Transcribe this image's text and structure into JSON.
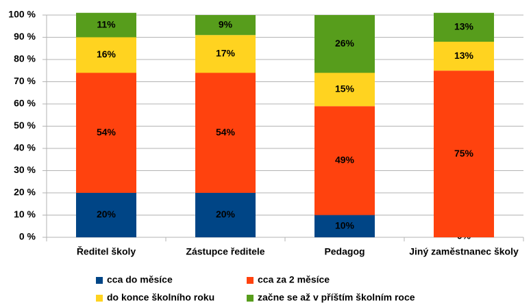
{
  "chart_data": {
    "type": "stacked_bar",
    "categories": [
      "Ředitel školy",
      "Zástupce ředitele",
      "Pedagog",
      "Jiný zaměstnanec školy"
    ],
    "series": [
      {
        "name": "cca do měsíce",
        "color": "#004586",
        "values": [
          20,
          20,
          10,
          0
        ],
        "value_labels": [
          "20%",
          "20%",
          "10%",
          "0%"
        ]
      },
      {
        "name": "cca za 2 měsíce",
        "color": "#ff420e",
        "values": [
          54,
          54,
          49,
          75
        ],
        "value_labels": [
          "54%",
          "54%",
          "49%",
          "75%"
        ]
      },
      {
        "name": "do konce školního roku",
        "color": "#ffd320",
        "values": [
          16,
          17,
          15,
          13
        ],
        "value_labels": [
          "16%",
          "17%",
          "15%",
          "13%"
        ]
      },
      {
        "name": "začne se až v příštím školním roce",
        "color": "#579d1c",
        "values": [
          11,
          9,
          26,
          13
        ],
        "value_labels": [
          "11%",
          "9%",
          "26%",
          "13%"
        ]
      }
    ],
    "ylim": [
      0,
      100
    ],
    "yticks": [
      {
        "value": 0,
        "label": "0 %"
      },
      {
        "value": 10,
        "label": "10 %"
      },
      {
        "value": 20,
        "label": "20 %"
      },
      {
        "value": 30,
        "label": "30 %"
      },
      {
        "value": 40,
        "label": "40 %"
      },
      {
        "value": 50,
        "label": "50 %"
      },
      {
        "value": 60,
        "label": "60 %"
      },
      {
        "value": 70,
        "label": "70 %"
      },
      {
        "value": 80,
        "label": "80 %"
      },
      {
        "value": 90,
        "label": "90 %"
      },
      {
        "value": 100,
        "label": "100 %"
      }
    ],
    "grid": true
  }
}
